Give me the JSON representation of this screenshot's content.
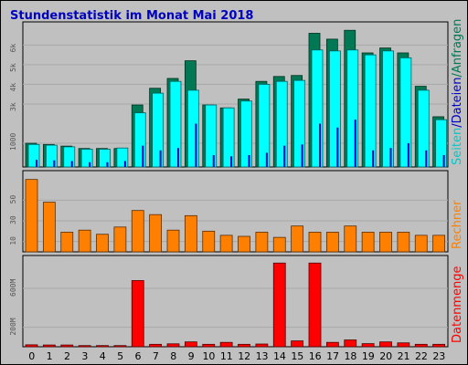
{
  "title": "Stundenstatistik im Monat Mai 2018",
  "colors": {
    "background": "#c0c0c0",
    "panel": "#c0c0c0",
    "grid": "#a8a8a8",
    "seiten": "#007854",
    "dateien": "#00ffff",
    "anfragen": "#0000c8",
    "rechner": "#ff8000",
    "datenmenge": "#ff0000",
    "title": "#0000c0"
  },
  "legend_top": {
    "part1": "Seiten",
    "sep1": "/",
    "part2": "Dateien",
    "sep2": "/",
    "part3": "Anfragen"
  },
  "legend_mid": "Rechner",
  "legend_bot": "Datenmenge",
  "chart_data": [
    {
      "type": "bar",
      "title": "Stundenstatistik im Monat Mai 2018",
      "categories": [
        "0",
        "1",
        "2",
        "3",
        "4",
        "5",
        "6",
        "7",
        "8",
        "9",
        "10",
        "11",
        "12",
        "13",
        "14",
        "15",
        "16",
        "17",
        "18",
        "19",
        "20",
        "21",
        "22",
        "23"
      ],
      "series": [
        {
          "name": "Seiten",
          "color": "#007854",
          "values": [
            1000,
            950,
            880,
            780,
            780,
            780,
            2950,
            3800,
            4300,
            5200,
            2950,
            2800,
            3250,
            4150,
            4400,
            4450,
            6600,
            6300,
            6750,
            5600,
            5850,
            5600,
            3900,
            2350
          ]
        },
        {
          "name": "Dateien",
          "color": "#00ffff",
          "values": [
            950,
            920,
            850,
            750,
            750,
            800,
            2550,
            3550,
            4150,
            3700,
            2950,
            2800,
            3150,
            4000,
            4150,
            4200,
            5750,
            5700,
            5750,
            5500,
            5700,
            5350,
            3700,
            2200
          ]
        },
        {
          "name": "Anfragen",
          "color": "#0000c8",
          "values": [
            300,
            280,
            250,
            200,
            200,
            250,
            900,
            700,
            800,
            2000,
            500,
            450,
            500,
            600,
            900,
            950,
            2000,
            1800,
            2200,
            700,
            800,
            1000,
            700,
            500
          ]
        }
      ],
      "yticks": [
        "1000",
        "3k",
        "4k",
        "5k",
        "6k"
      ],
      "ytick_values": [
        1000,
        3000,
        4000,
        5000,
        6000
      ],
      "ylim": [
        0,
        6900
      ],
      "yscale": "compressed-low"
    },
    {
      "type": "bar",
      "categories": [
        "0",
        "1",
        "2",
        "3",
        "4",
        "5",
        "6",
        "7",
        "8",
        "9",
        "10",
        "11",
        "12",
        "13",
        "14",
        "15",
        "16",
        "17",
        "18",
        "19",
        "20",
        "21",
        "22",
        "23"
      ],
      "series": [
        {
          "name": "Rechner",
          "color": "#ff8000",
          "values": [
            70,
            48,
            19,
            21,
            17,
            24,
            40,
            36,
            21,
            35,
            20,
            16,
            15,
            19,
            14,
            25,
            19,
            19,
            25,
            19,
            19,
            19,
            16,
            16
          ]
        }
      ],
      "yticks": [
        "10",
        "30",
        "50"
      ],
      "ytick_values": [
        10,
        30,
        50
      ],
      "ylim": [
        0,
        75
      ]
    },
    {
      "type": "bar",
      "categories": [
        "0",
        "1",
        "2",
        "3",
        "4",
        "5",
        "6",
        "7",
        "8",
        "9",
        "10",
        "11",
        "12",
        "13",
        "14",
        "15",
        "16",
        "17",
        "18",
        "19",
        "20",
        "21",
        "22",
        "23"
      ],
      "series": [
        {
          "name": "Datenmenge",
          "color": "#ff0000",
          "values": [
            20,
            18,
            18,
            12,
            12,
            12,
            680,
            25,
            30,
            50,
            25,
            45,
            25,
            28,
            860,
            60,
            860,
            45,
            70,
            32,
            50,
            40,
            25,
            25
          ]
        }
      ],
      "yticks": [
        "200M",
        "600M"
      ],
      "ytick_values": [
        200,
        600
      ],
      "ylim": [
        0,
        900
      ]
    }
  ]
}
